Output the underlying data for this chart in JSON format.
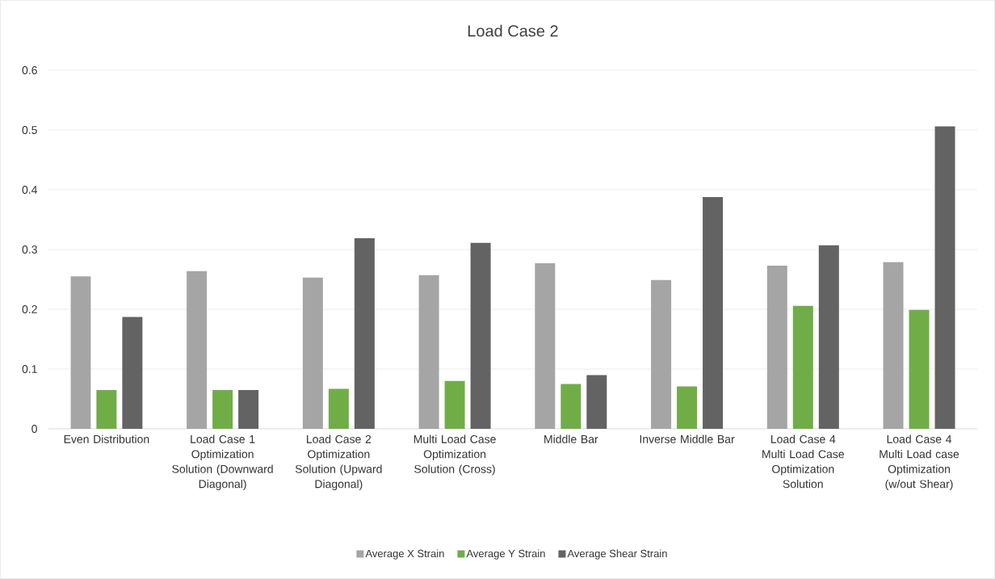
{
  "chart_data": {
    "type": "bar",
    "title": "Load Case 2",
    "categories": [
      "Even Distribution",
      "Load Case 1 Optimization Solution (Downward Diagonal)",
      "Load Case 2 Optimization Solution (Upward Diagonal)",
      "Multi Load Case Optimization Solution (Cross)",
      "Middle Bar",
      "Inverse Middle Bar",
      "Load Case 4 Multi Load Case Optimization Solution",
      "Load Case 4 Multi Load case Optimization (w/out Shear)"
    ],
    "series": [
      {
        "name": "Average X Strain",
        "color": "#a5a5a5",
        "values": [
          0.255,
          0.264,
          0.253,
          0.257,
          0.277,
          0.249,
          0.273,
          0.279
        ]
      },
      {
        "name": "Average Y Strain",
        "color": "#70ad47",
        "values": [
          0.065,
          0.065,
          0.067,
          0.08,
          0.075,
          0.071,
          0.206,
          0.199
        ]
      },
      {
        "name": "Average Shear Strain",
        "color": "#636363",
        "values": [
          0.187,
          0.065,
          0.319,
          0.311,
          0.09,
          0.388,
          0.307,
          0.506
        ]
      }
    ],
    "ylim": [
      0,
      0.6
    ],
    "yticks": [
      0,
      0.1,
      0.2,
      0.3,
      0.4,
      0.5,
      0.6
    ],
    "grid": "y",
    "legend": "bottom"
  }
}
